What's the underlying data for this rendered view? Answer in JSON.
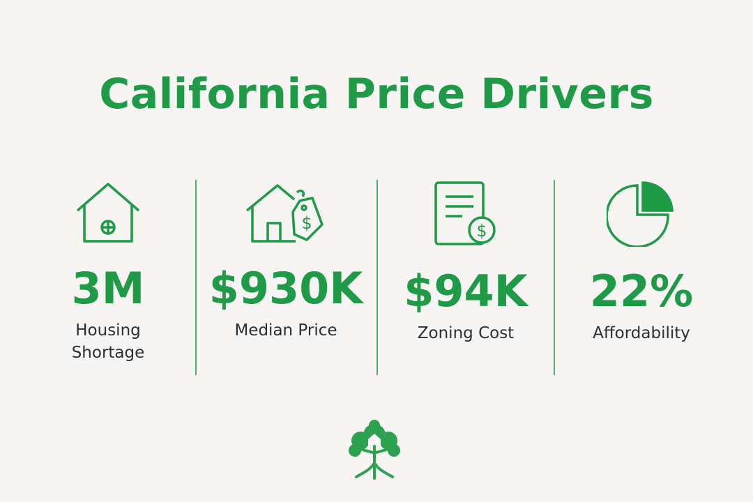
{
  "header": {
    "title": "California Price Drivers"
  },
  "stats": [
    {
      "value": "3M",
      "label": "Housing Shortage"
    },
    {
      "value": "$930K",
      "label": "Median Price"
    },
    {
      "value": "$94K",
      "label": "Zoning Cost"
    },
    {
      "value": "22%",
      "label": "Affordability"
    }
  ]
}
